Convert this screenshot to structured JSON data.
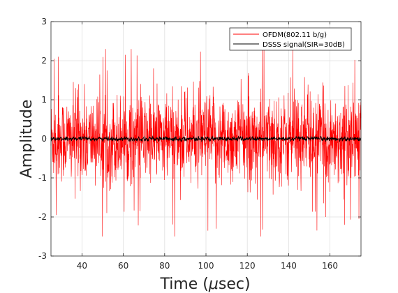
{
  "chart_data": {
    "type": "line",
    "title": "",
    "xlabel": "Time (",
    "xlabel_symbol": "μ",
    "xlabel_tail": "sec)",
    "ylabel": "Amplitude",
    "xlim": [
      25,
      175
    ],
    "ylim": [
      -3,
      3
    ],
    "x_ticks": [
      40,
      60,
      80,
      100,
      120,
      140,
      160
    ],
    "x_tick_labels": [
      "40",
      "60",
      "80",
      "100",
      "120",
      "140",
      "160"
    ],
    "y_ticks": [
      -3,
      -2,
      -1,
      0,
      1,
      2,
      3
    ],
    "y_tick_labels": [
      "-3",
      "-2",
      "-1",
      "0",
      "1",
      "2",
      "3"
    ],
    "grid": true,
    "legend_position": "top-right",
    "series": [
      {
        "name": "OFDM(802.11 b/g)",
        "color": "#ff0000",
        "x": [
          25,
          175
        ],
        "y_range": [
          -2.5,
          2.3
        ],
        "typical_abs": 0.55,
        "spikes": [
          {
            "x": 26.5,
            "y": 2.05
          },
          {
            "x": 27.5,
            "y": -1.95
          },
          {
            "x": 28.5,
            "y": 2.1
          },
          {
            "x": 52,
            "y": -1.9
          },
          {
            "x": 61,
            "y": 2.15
          },
          {
            "x": 68,
            "y": -1.85
          },
          {
            "x": 101,
            "y": -2.35
          },
          {
            "x": 105,
            "y": -2.3
          },
          {
            "x": 126.5,
            "y": -2.5
          },
          {
            "x": 142,
            "y": 2.3
          },
          {
            "x": 158,
            "y": -2.0
          },
          {
            "x": 167,
            "y": -2.2
          },
          {
            "x": 174,
            "y": -2.05
          }
        ]
      },
      {
        "name": "DSSS signal(SIR=30dB)",
        "color": "#000000",
        "x": [
          25,
          175
        ],
        "y_range": [
          -0.06,
          0.06
        ],
        "typical_abs": 0.03
      }
    ]
  }
}
